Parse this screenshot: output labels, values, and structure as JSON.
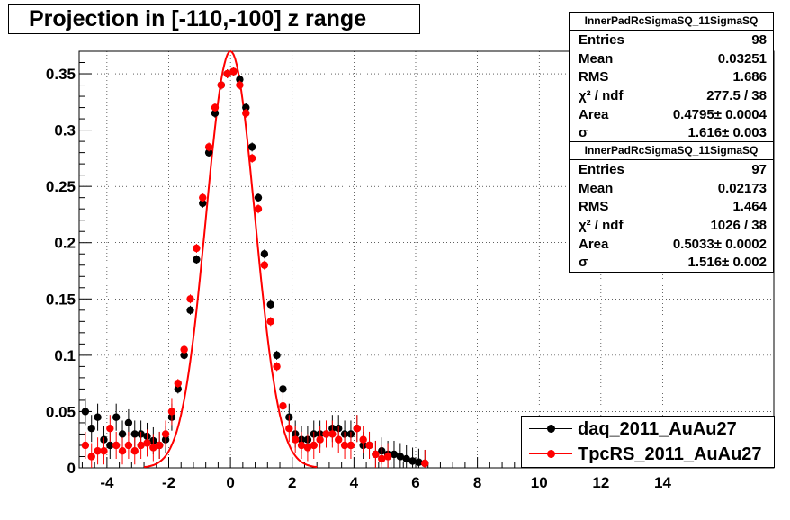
{
  "colors": {
    "series_daq": "#000000",
    "series_tpcrs": "#ff0000",
    "axis": "#000000",
    "grid": "#000000"
  },
  "title": "Projection in [-110,-100] z range",
  "stats": [
    {
      "header": "InnerPadRcSigmaSQ_11SigmaSQ",
      "rows": [
        {
          "label": "Entries",
          "value": "98"
        },
        {
          "label": "Mean",
          "value": "0.03251"
        },
        {
          "label": "RMS",
          "value": "1.686"
        },
        {
          "label": "χ² / ndf",
          "value": "277.5 / 38"
        },
        {
          "label": "Area",
          "value": "0.4795± 0.0004"
        },
        {
          "label": "σ",
          "value": "1.616± 0.003"
        }
      ]
    },
    {
      "header": "InnerPadRcSigmaSQ_11SigmaSQ",
      "rows": [
        {
          "label": "Entries",
          "value": "97"
        },
        {
          "label": "Mean",
          "value": "0.02173"
        },
        {
          "label": "RMS",
          "value": "1.464"
        },
        {
          "label": "χ² / ndf",
          "value": "1026 / 38"
        },
        {
          "label": "Area",
          "value": "0.5033± 0.0002"
        },
        {
          "label": "σ",
          "value": "1.516± 0.002"
        }
      ]
    }
  ],
  "legend": [
    {
      "label": "daq_2011_AuAu27",
      "color": "#000000"
    },
    {
      "label": "TpcRS_2011_AuAu27",
      "color": "#ff0000"
    }
  ],
  "chart_data": {
    "type": "scatter",
    "title": "Projection in [-110,-100] z range",
    "xlabel": "",
    "ylabel": "",
    "xlim": [
      -4.9,
      17.6
    ],
    "ylim": [
      0,
      0.37
    ],
    "grid": true,
    "legend_position": "bottom-right",
    "x_ticks": [
      -4,
      -2,
      0,
      2,
      4,
      6,
      8,
      10,
      12,
      14
    ],
    "y_ticks": [
      0,
      0.05,
      0.1,
      0.15,
      0.2,
      0.25,
      0.3,
      0.35
    ],
    "x_tick_labels": [
      "-4",
      "-2",
      "0",
      "2",
      "4",
      "6",
      "8",
      "10",
      "12",
      "14"
    ],
    "y_tick_labels": [
      "0",
      "0.05",
      "0.1",
      "0.15",
      "0.2",
      "0.25",
      "0.3",
      "0.35"
    ],
    "series": [
      {
        "name": "daq_2011_AuAu27",
        "color": "#000000",
        "fit_sigma": 1.616,
        "fit_peak": 0.355,
        "x": [
          -4.7,
          -4.5,
          -4.3,
          -4.1,
          -3.9,
          -3.7,
          -3.5,
          -3.3,
          -3.1,
          -2.9,
          -2.7,
          -2.5,
          -2.3,
          -2.1,
          -1.9,
          -1.7,
          -1.5,
          -1.3,
          -1.1,
          -0.9,
          -0.7,
          -0.5,
          -0.3,
          -0.1,
          0.1,
          0.3,
          0.5,
          0.7,
          0.9,
          1.1,
          1.3,
          1.5,
          1.7,
          1.9,
          2.1,
          2.3,
          2.5,
          2.7,
          2.9,
          3.1,
          3.3,
          3.5,
          3.7,
          3.9,
          4.1,
          4.3,
          4.5,
          4.7,
          4.9,
          5.1,
          5.3,
          5.5,
          5.7,
          5.9,
          6.1,
          6.3
        ],
        "y": [
          0.05,
          0.035,
          0.045,
          0.025,
          0.02,
          0.045,
          0.03,
          0.04,
          0.03,
          0.03,
          0.028,
          0.024,
          0.02,
          0.025,
          0.045,
          0.07,
          0.1,
          0.14,
          0.185,
          0.235,
          0.28,
          0.315,
          0.34,
          0.35,
          0.352,
          0.345,
          0.32,
          0.285,
          0.24,
          0.19,
          0.145,
          0.1,
          0.07,
          0.045,
          0.03,
          0.025,
          0.025,
          0.03,
          0.03,
          0.03,
          0.035,
          0.035,
          0.03,
          0.03,
          0.035,
          0.02,
          0.02,
          0.012,
          0.015,
          0.012,
          0.012,
          0.01,
          0.008,
          0.006,
          0.005,
          0.004
        ]
      },
      {
        "name": "TpcRS_2011_AuAu27",
        "color": "#ff0000",
        "fit_sigma": 1.516,
        "fit_peak": 0.37,
        "x": [
          -4.7,
          -4.5,
          -4.3,
          -4.1,
          -3.9,
          -3.7,
          -3.5,
          -3.3,
          -3.1,
          -2.9,
          -2.7,
          -2.5,
          -2.3,
          -2.1,
          -1.9,
          -1.7,
          -1.5,
          -1.3,
          -1.1,
          -0.9,
          -0.7,
          -0.5,
          -0.3,
          -0.1,
          0.1,
          0.3,
          0.5,
          0.7,
          0.9,
          1.1,
          1.3,
          1.5,
          1.7,
          1.9,
          2.1,
          2.3,
          2.5,
          2.7,
          2.9,
          3.1,
          3.3,
          3.5,
          3.7,
          3.9,
          4.1,
          4.3,
          4.5,
          4.7,
          4.9,
          5.1,
          6.3
        ],
        "y": [
          0.02,
          0.01,
          0.015,
          0.015,
          0.035,
          0.02,
          0.015,
          0.02,
          0.015,
          0.02,
          0.022,
          0.018,
          0.02,
          0.03,
          0.05,
          0.075,
          0.105,
          0.15,
          0.195,
          0.24,
          0.285,
          0.32,
          0.34,
          0.35,
          0.352,
          0.34,
          0.315,
          0.275,
          0.23,
          0.18,
          0.13,
          0.09,
          0.055,
          0.035,
          0.025,
          0.02,
          0.018,
          0.02,
          0.025,
          0.03,
          0.03,
          0.025,
          0.02,
          0.02,
          0.035,
          0.025,
          0.02,
          0.012,
          0.008,
          0.01,
          0.004
        ]
      }
    ]
  }
}
